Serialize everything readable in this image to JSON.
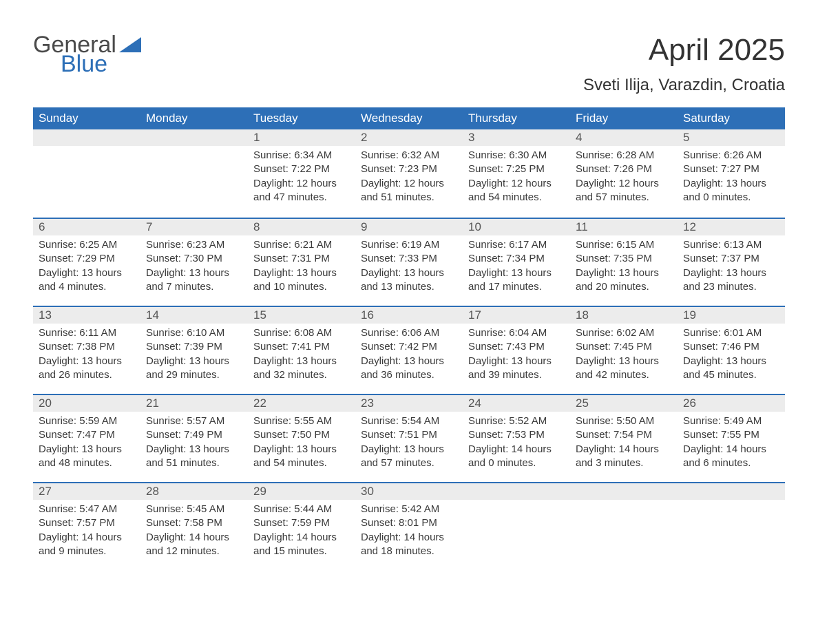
{
  "brand": {
    "word1": "General",
    "word2": "Blue",
    "accent_color": "#2d6fb7"
  },
  "title": "April 2025",
  "location": "Sveti Ilija, Varazdin, Croatia",
  "colors": {
    "header_bg": "#2d6fb7",
    "header_fg": "#ffffff",
    "daynum_bg": "#ececec",
    "week_border": "#2d6fb7",
    "text": "#333333"
  },
  "weekdays": [
    "Sunday",
    "Monday",
    "Tuesday",
    "Wednesday",
    "Thursday",
    "Friday",
    "Saturday"
  ],
  "weeks": [
    [
      null,
      null,
      {
        "d": "1",
        "sr": "6:34 AM",
        "ss": "7:22 PM",
        "dl": "12 hours and 47 minutes."
      },
      {
        "d": "2",
        "sr": "6:32 AM",
        "ss": "7:23 PM",
        "dl": "12 hours and 51 minutes."
      },
      {
        "d": "3",
        "sr": "6:30 AM",
        "ss": "7:25 PM",
        "dl": "12 hours and 54 minutes."
      },
      {
        "d": "4",
        "sr": "6:28 AM",
        "ss": "7:26 PM",
        "dl": "12 hours and 57 minutes."
      },
      {
        "d": "5",
        "sr": "6:26 AM",
        "ss": "7:27 PM",
        "dl": "13 hours and 0 minutes."
      }
    ],
    [
      {
        "d": "6",
        "sr": "6:25 AM",
        "ss": "7:29 PM",
        "dl": "13 hours and 4 minutes."
      },
      {
        "d": "7",
        "sr": "6:23 AM",
        "ss": "7:30 PM",
        "dl": "13 hours and 7 minutes."
      },
      {
        "d": "8",
        "sr": "6:21 AM",
        "ss": "7:31 PM",
        "dl": "13 hours and 10 minutes."
      },
      {
        "d": "9",
        "sr": "6:19 AM",
        "ss": "7:33 PM",
        "dl": "13 hours and 13 minutes."
      },
      {
        "d": "10",
        "sr": "6:17 AM",
        "ss": "7:34 PM",
        "dl": "13 hours and 17 minutes."
      },
      {
        "d": "11",
        "sr": "6:15 AM",
        "ss": "7:35 PM",
        "dl": "13 hours and 20 minutes."
      },
      {
        "d": "12",
        "sr": "6:13 AM",
        "ss": "7:37 PM",
        "dl": "13 hours and 23 minutes."
      }
    ],
    [
      {
        "d": "13",
        "sr": "6:11 AM",
        "ss": "7:38 PM",
        "dl": "13 hours and 26 minutes."
      },
      {
        "d": "14",
        "sr": "6:10 AM",
        "ss": "7:39 PM",
        "dl": "13 hours and 29 minutes."
      },
      {
        "d": "15",
        "sr": "6:08 AM",
        "ss": "7:41 PM",
        "dl": "13 hours and 32 minutes."
      },
      {
        "d": "16",
        "sr": "6:06 AM",
        "ss": "7:42 PM",
        "dl": "13 hours and 36 minutes."
      },
      {
        "d": "17",
        "sr": "6:04 AM",
        "ss": "7:43 PM",
        "dl": "13 hours and 39 minutes."
      },
      {
        "d": "18",
        "sr": "6:02 AM",
        "ss": "7:45 PM",
        "dl": "13 hours and 42 minutes."
      },
      {
        "d": "19",
        "sr": "6:01 AM",
        "ss": "7:46 PM",
        "dl": "13 hours and 45 minutes."
      }
    ],
    [
      {
        "d": "20",
        "sr": "5:59 AM",
        "ss": "7:47 PM",
        "dl": "13 hours and 48 minutes."
      },
      {
        "d": "21",
        "sr": "5:57 AM",
        "ss": "7:49 PM",
        "dl": "13 hours and 51 minutes."
      },
      {
        "d": "22",
        "sr": "5:55 AM",
        "ss": "7:50 PM",
        "dl": "13 hours and 54 minutes."
      },
      {
        "d": "23",
        "sr": "5:54 AM",
        "ss": "7:51 PM",
        "dl": "13 hours and 57 minutes."
      },
      {
        "d": "24",
        "sr": "5:52 AM",
        "ss": "7:53 PM",
        "dl": "14 hours and 0 minutes."
      },
      {
        "d": "25",
        "sr": "5:50 AM",
        "ss": "7:54 PM",
        "dl": "14 hours and 3 minutes."
      },
      {
        "d": "26",
        "sr": "5:49 AM",
        "ss": "7:55 PM",
        "dl": "14 hours and 6 minutes."
      }
    ],
    [
      {
        "d": "27",
        "sr": "5:47 AM",
        "ss": "7:57 PM",
        "dl": "14 hours and 9 minutes."
      },
      {
        "d": "28",
        "sr": "5:45 AM",
        "ss": "7:58 PM",
        "dl": "14 hours and 12 minutes."
      },
      {
        "d": "29",
        "sr": "5:44 AM",
        "ss": "7:59 PM",
        "dl": "14 hours and 15 minutes."
      },
      {
        "d": "30",
        "sr": "5:42 AM",
        "ss": "8:01 PM",
        "dl": "14 hours and 18 minutes."
      },
      null,
      null,
      null
    ]
  ],
  "labels": {
    "sunrise": "Sunrise: ",
    "sunset": "Sunset: ",
    "daylight": "Daylight: "
  }
}
